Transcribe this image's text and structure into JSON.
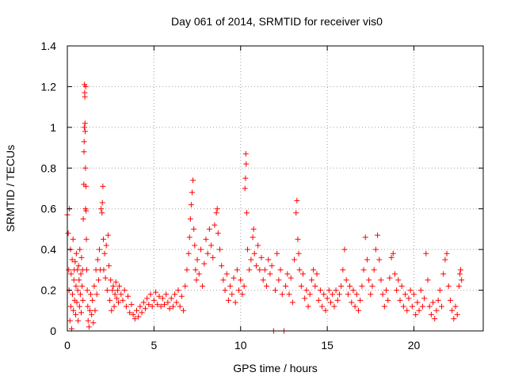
{
  "chart_data": {
    "type": "scatter",
    "title": "Day 061 of 2014, SRMTID for receiver vis0",
    "xlabel": "GPS time / hours",
    "ylabel": "SRMTID / TECUs",
    "xlim": [
      0,
      24
    ],
    "ylim": [
      0,
      1.4
    ],
    "xticks": [
      0,
      5,
      10,
      15,
      20
    ],
    "yticks": [
      0,
      0.2,
      0.4,
      0.6,
      0.8,
      1,
      1.2,
      1.4
    ],
    "xtick_labels": [
      "0",
      "5",
      "10",
      "15",
      "20"
    ],
    "ytick_labels": [
      "0",
      "0.2",
      "0.4",
      "0.6",
      "0.8",
      "1",
      "1.2",
      "1.4"
    ],
    "grid": true,
    "marker": "+",
    "colors": {
      "series": "#ff0000",
      "grid": "#a0a0a0",
      "axis": "#000000"
    },
    "series": [
      {
        "name": "vis0",
        "points": [
          [
            0.0,
            0.57
          ],
          [
            0.05,
            0.48
          ],
          [
            0.08,
            0.3
          ],
          [
            0.1,
            0.2
          ],
          [
            0.12,
            0.6
          ],
          [
            0.15,
            0.05
          ],
          [
            0.18,
            0.4
          ],
          [
            0.2,
            0.12
          ],
          [
            0.22,
            0.28
          ],
          [
            0.25,
            0.01
          ],
          [
            0.28,
            0.35
          ],
          [
            0.3,
            0.18
          ],
          [
            0.33,
            0.45
          ],
          [
            0.35,
            0.1
          ],
          [
            0.38,
            0.25
          ],
          [
            0.4,
            0.3
          ],
          [
            0.42,
            0.15
          ],
          [
            0.45,
            0.34
          ],
          [
            0.48,
            0.08
          ],
          [
            0.5,
            0.22
          ],
          [
            0.52,
            0.38
          ],
          [
            0.55,
            0.14
          ],
          [
            0.58,
            0.3
          ],
          [
            0.6,
            0.2
          ],
          [
            0.62,
            0.05
          ],
          [
            0.65,
            0.32
          ],
          [
            0.68,
            0.25
          ],
          [
            0.7,
            0.12
          ],
          [
            0.72,
            0.4
          ],
          [
            0.75,
            0.18
          ],
          [
            0.78,
            0.28
          ],
          [
            0.8,
            0.09
          ],
          [
            0.82,
            0.36
          ],
          [
            0.85,
            0.22
          ],
          [
            0.88,
            0.3
          ],
          [
            0.9,
            0.15
          ],
          [
            0.92,
            0.55
          ],
          [
            0.95,
            0.72
          ],
          [
            0.96,
            0.88
          ],
          [
            0.97,
            0.93
          ],
          [
            0.98,
            1.0
          ],
          [
            0.99,
            1.21
          ],
          [
            1.0,
            1.17
          ],
          [
            1.01,
            1.15
          ],
          [
            1.02,
            1.02
          ],
          [
            1.03,
            0.98
          ],
          [
            1.04,
            0.8
          ],
          [
            1.05,
            0.6
          ],
          [
            1.06,
            1.2
          ],
          [
            1.07,
            0.71
          ],
          [
            1.08,
            0.59
          ],
          [
            1.1,
            0.45
          ],
          [
            1.12,
            0.3
          ],
          [
            1.15,
            0.2
          ],
          [
            1.18,
            0.12
          ],
          [
            1.2,
            0.05
          ],
          [
            1.25,
            0.02
          ],
          [
            1.3,
            0.1
          ],
          [
            1.35,
            0.18
          ],
          [
            1.4,
            0.08
          ],
          [
            1.45,
            0.15
          ],
          [
            1.5,
            0.04
          ],
          [
            1.55,
            0.22
          ],
          [
            1.6,
            0.1
          ],
          [
            1.65,
            0.3
          ],
          [
            1.7,
            0.18
          ],
          [
            1.75,
            0.35
          ],
          [
            1.8,
            0.25
          ],
          [
            1.85,
            0.4
          ],
          [
            1.9,
            0.3
          ],
          [
            1.95,
            0.6
          ],
          [
            2.0,
            0.58
          ],
          [
            2.02,
            0.63
          ],
          [
            2.05,
            0.71
          ],
          [
            2.08,
            0.45
          ],
          [
            2.1,
            0.3
          ],
          [
            2.15,
            0.38
          ],
          [
            2.2,
            0.26
          ],
          [
            2.25,
            0.42
          ],
          [
            2.3,
            0.2
          ],
          [
            2.35,
            0.47
          ],
          [
            2.4,
            0.32
          ],
          [
            2.45,
            0.15
          ],
          [
            2.5,
            0.25
          ],
          [
            2.55,
            0.1
          ],
          [
            2.6,
            0.2
          ],
          [
            2.65,
            0.22
          ],
          [
            2.7,
            0.12
          ],
          [
            2.75,
            0.18
          ],
          [
            2.8,
            0.24
          ],
          [
            2.85,
            0.16
          ],
          [
            2.9,
            0.2
          ],
          [
            2.95,
            0.14
          ],
          [
            3.0,
            0.22
          ],
          [
            3.1,
            0.18
          ],
          [
            3.2,
            0.15
          ],
          [
            3.3,
            0.2
          ],
          [
            3.4,
            0.12
          ],
          [
            3.5,
            0.17
          ],
          [
            3.6,
            0.09
          ],
          [
            3.7,
            0.13
          ],
          [
            3.8,
            0.08
          ],
          [
            3.9,
            0.06
          ],
          [
            4.0,
            0.1
          ],
          [
            4.1,
            0.07
          ],
          [
            4.2,
            0.12
          ],
          [
            4.3,
            0.09
          ],
          [
            4.4,
            0.14
          ],
          [
            4.5,
            0.11
          ],
          [
            4.6,
            0.16
          ],
          [
            4.7,
            0.13
          ],
          [
            4.8,
            0.18
          ],
          [
            4.9,
            0.12
          ],
          [
            5.0,
            0.15
          ],
          [
            5.1,
            0.19
          ],
          [
            5.2,
            0.13
          ],
          [
            5.3,
            0.17
          ],
          [
            5.4,
            0.12
          ],
          [
            5.5,
            0.16
          ],
          [
            5.6,
            0.13
          ],
          [
            5.7,
            0.18
          ],
          [
            5.8,
            0.14
          ],
          [
            5.9,
            0.11
          ],
          [
            6.0,
            0.16
          ],
          [
            6.1,
            0.12
          ],
          [
            6.2,
            0.18
          ],
          [
            6.3,
            0.14
          ],
          [
            6.4,
            0.2
          ],
          [
            6.5,
            0.12
          ],
          [
            6.6,
            0.17
          ],
          [
            6.7,
            0.1
          ],
          [
            6.8,
            0.22
          ],
          [
            6.9,
            0.3
          ],
          [
            7.0,
            0.38
          ],
          [
            7.05,
            0.46
          ],
          [
            7.1,
            0.55
          ],
          [
            7.15,
            0.62
          ],
          [
            7.2,
            0.68
          ],
          [
            7.25,
            0.74
          ],
          [
            7.3,
            0.5
          ],
          [
            7.35,
            0.42
          ],
          [
            7.4,
            0.3
          ],
          [
            7.45,
            0.25
          ],
          [
            7.5,
            0.35
          ],
          [
            7.6,
            0.28
          ],
          [
            7.7,
            0.4
          ],
          [
            7.8,
            0.22
          ],
          [
            7.9,
            0.33
          ],
          [
            8.0,
            0.45
          ],
          [
            8.1,
            0.38
          ],
          [
            8.2,
            0.5
          ],
          [
            8.3,
            0.42
          ],
          [
            8.4,
            0.36
          ],
          [
            8.5,
            0.52
          ],
          [
            8.6,
            0.58
          ],
          [
            8.65,
            0.6
          ],
          [
            8.7,
            0.48
          ],
          [
            8.8,
            0.4
          ],
          [
            8.9,
            0.32
          ],
          [
            9.0,
            0.25
          ],
          [
            9.1,
            0.2
          ],
          [
            9.2,
            0.28
          ],
          [
            9.3,
            0.15
          ],
          [
            9.4,
            0.22
          ],
          [
            9.5,
            0.18
          ],
          [
            9.6,
            0.26
          ],
          [
            9.7,
            0.14
          ],
          [
            9.8,
            0.3
          ],
          [
            9.9,
            0.2
          ],
          [
            10.0,
            0.25
          ],
          [
            10.1,
            0.18
          ],
          [
            10.2,
            0.22
          ],
          [
            10.25,
            0.7
          ],
          [
            10.28,
            0.75
          ],
          [
            10.3,
            0.87
          ],
          [
            10.32,
            0.82
          ],
          [
            10.35,
            0.58
          ],
          [
            10.4,
            0.4
          ],
          [
            10.5,
            0.3
          ],
          [
            10.6,
            0.35
          ],
          [
            10.7,
            0.46
          ],
          [
            10.75,
            0.5
          ],
          [
            10.8,
            0.38
          ],
          [
            10.9,
            0.32
          ],
          [
            11.0,
            0.42
          ],
          [
            11.1,
            0.3
          ],
          [
            11.2,
            0.36
          ],
          [
            11.3,
            0.25
          ],
          [
            11.4,
            0.3
          ],
          [
            11.5,
            0.22
          ],
          [
            11.6,
            0.35
          ],
          [
            11.7,
            0.28
          ],
          [
            11.8,
            0.32
          ],
          [
            11.9,
            0.0
          ],
          [
            12.0,
            0.2
          ],
          [
            12.1,
            0.38
          ],
          [
            12.2,
            0.25
          ],
          [
            12.3,
            0.3
          ],
          [
            12.4,
            0.18
          ],
          [
            12.5,
            0.0
          ],
          [
            12.6,
            0.22
          ],
          [
            12.7,
            0.28
          ],
          [
            12.8,
            0.18
          ],
          [
            12.9,
            0.26
          ],
          [
            13.0,
            0.14
          ],
          [
            13.1,
            0.35
          ],
          [
            13.2,
            0.58
          ],
          [
            13.25,
            0.64
          ],
          [
            13.3,
            0.45
          ],
          [
            13.35,
            0.38
          ],
          [
            13.4,
            0.3
          ],
          [
            13.5,
            0.22
          ],
          [
            13.6,
            0.28
          ],
          [
            13.7,
            0.16
          ],
          [
            13.8,
            0.2
          ],
          [
            13.9,
            0.12
          ],
          [
            14.0,
            0.18
          ],
          [
            14.1,
            0.25
          ],
          [
            14.2,
            0.3
          ],
          [
            14.3,
            0.22
          ],
          [
            14.4,
            0.28
          ],
          [
            14.5,
            0.15
          ],
          [
            14.6,
            0.2
          ],
          [
            14.7,
            0.12
          ],
          [
            14.8,
            0.18
          ],
          [
            14.9,
            0.1
          ],
          [
            15.0,
            0.16
          ],
          [
            15.1,
            0.2
          ],
          [
            15.2,
            0.14
          ],
          [
            15.3,
            0.18
          ],
          [
            15.4,
            0.12
          ],
          [
            15.5,
            0.2
          ],
          [
            15.6,
            0.15
          ],
          [
            15.7,
            0.18
          ],
          [
            15.8,
            0.22
          ],
          [
            15.9,
            0.3
          ],
          [
            16.0,
            0.4
          ],
          [
            16.1,
            0.25
          ],
          [
            16.2,
            0.18
          ],
          [
            16.3,
            0.22
          ],
          [
            16.4,
            0.14
          ],
          [
            16.5,
            0.2
          ],
          [
            16.6,
            0.12
          ],
          [
            16.7,
            0.18
          ],
          [
            16.8,
            0.1
          ],
          [
            16.9,
            0.15
          ],
          [
            17.0,
            0.22
          ],
          [
            17.1,
            0.3
          ],
          [
            17.2,
            0.46
          ],
          [
            17.3,
            0.35
          ],
          [
            17.4,
            0.25
          ],
          [
            17.5,
            0.18
          ],
          [
            17.6,
            0.22
          ],
          [
            17.7,
            0.3
          ],
          [
            17.8,
            0.4
          ],
          [
            17.9,
            0.47
          ],
          [
            18.0,
            0.35
          ],
          [
            18.1,
            0.25
          ],
          [
            18.2,
            0.18
          ],
          [
            18.3,
            0.12
          ],
          [
            18.4,
            0.2
          ],
          [
            18.5,
            0.15
          ],
          [
            18.6,
            0.26
          ],
          [
            18.7,
            0.36
          ],
          [
            18.8,
            0.38
          ],
          [
            18.9,
            0.28
          ],
          [
            19.0,
            0.2
          ],
          [
            19.1,
            0.25
          ],
          [
            19.2,
            0.15
          ],
          [
            19.3,
            0.22
          ],
          [
            19.4,
            0.12
          ],
          [
            19.5,
            0.18
          ],
          [
            19.6,
            0.1
          ],
          [
            19.7,
            0.16
          ],
          [
            19.8,
            0.2
          ],
          [
            19.9,
            0.12
          ],
          [
            20.0,
            0.18
          ],
          [
            20.1,
            0.08
          ],
          [
            20.2,
            0.14
          ],
          [
            20.3,
            0.1
          ],
          [
            20.4,
            0.2
          ],
          [
            20.5,
            0.12
          ],
          [
            20.6,
            0.16
          ],
          [
            20.7,
            0.38
          ],
          [
            20.8,
            0.25
          ],
          [
            20.9,
            0.12
          ],
          [
            21.0,
            0.08
          ],
          [
            21.1,
            0.14
          ],
          [
            21.2,
            0.06
          ],
          [
            21.3,
            0.1
          ],
          [
            21.4,
            0.15
          ],
          [
            21.5,
            0.2
          ],
          [
            21.6,
            0.12
          ],
          [
            21.7,
            0.28
          ],
          [
            21.8,
            0.35
          ],
          [
            21.9,
            0.38
          ],
          [
            22.0,
            0.22
          ],
          [
            22.1,
            0.15
          ],
          [
            22.2,
            0.1
          ],
          [
            22.3,
            0.06
          ],
          [
            22.4,
            0.12
          ],
          [
            22.5,
            0.08
          ],
          [
            22.6,
            0.22
          ],
          [
            22.65,
            0.28
          ],
          [
            22.7,
            0.3
          ],
          [
            22.75,
            0.25
          ]
        ]
      }
    ]
  }
}
